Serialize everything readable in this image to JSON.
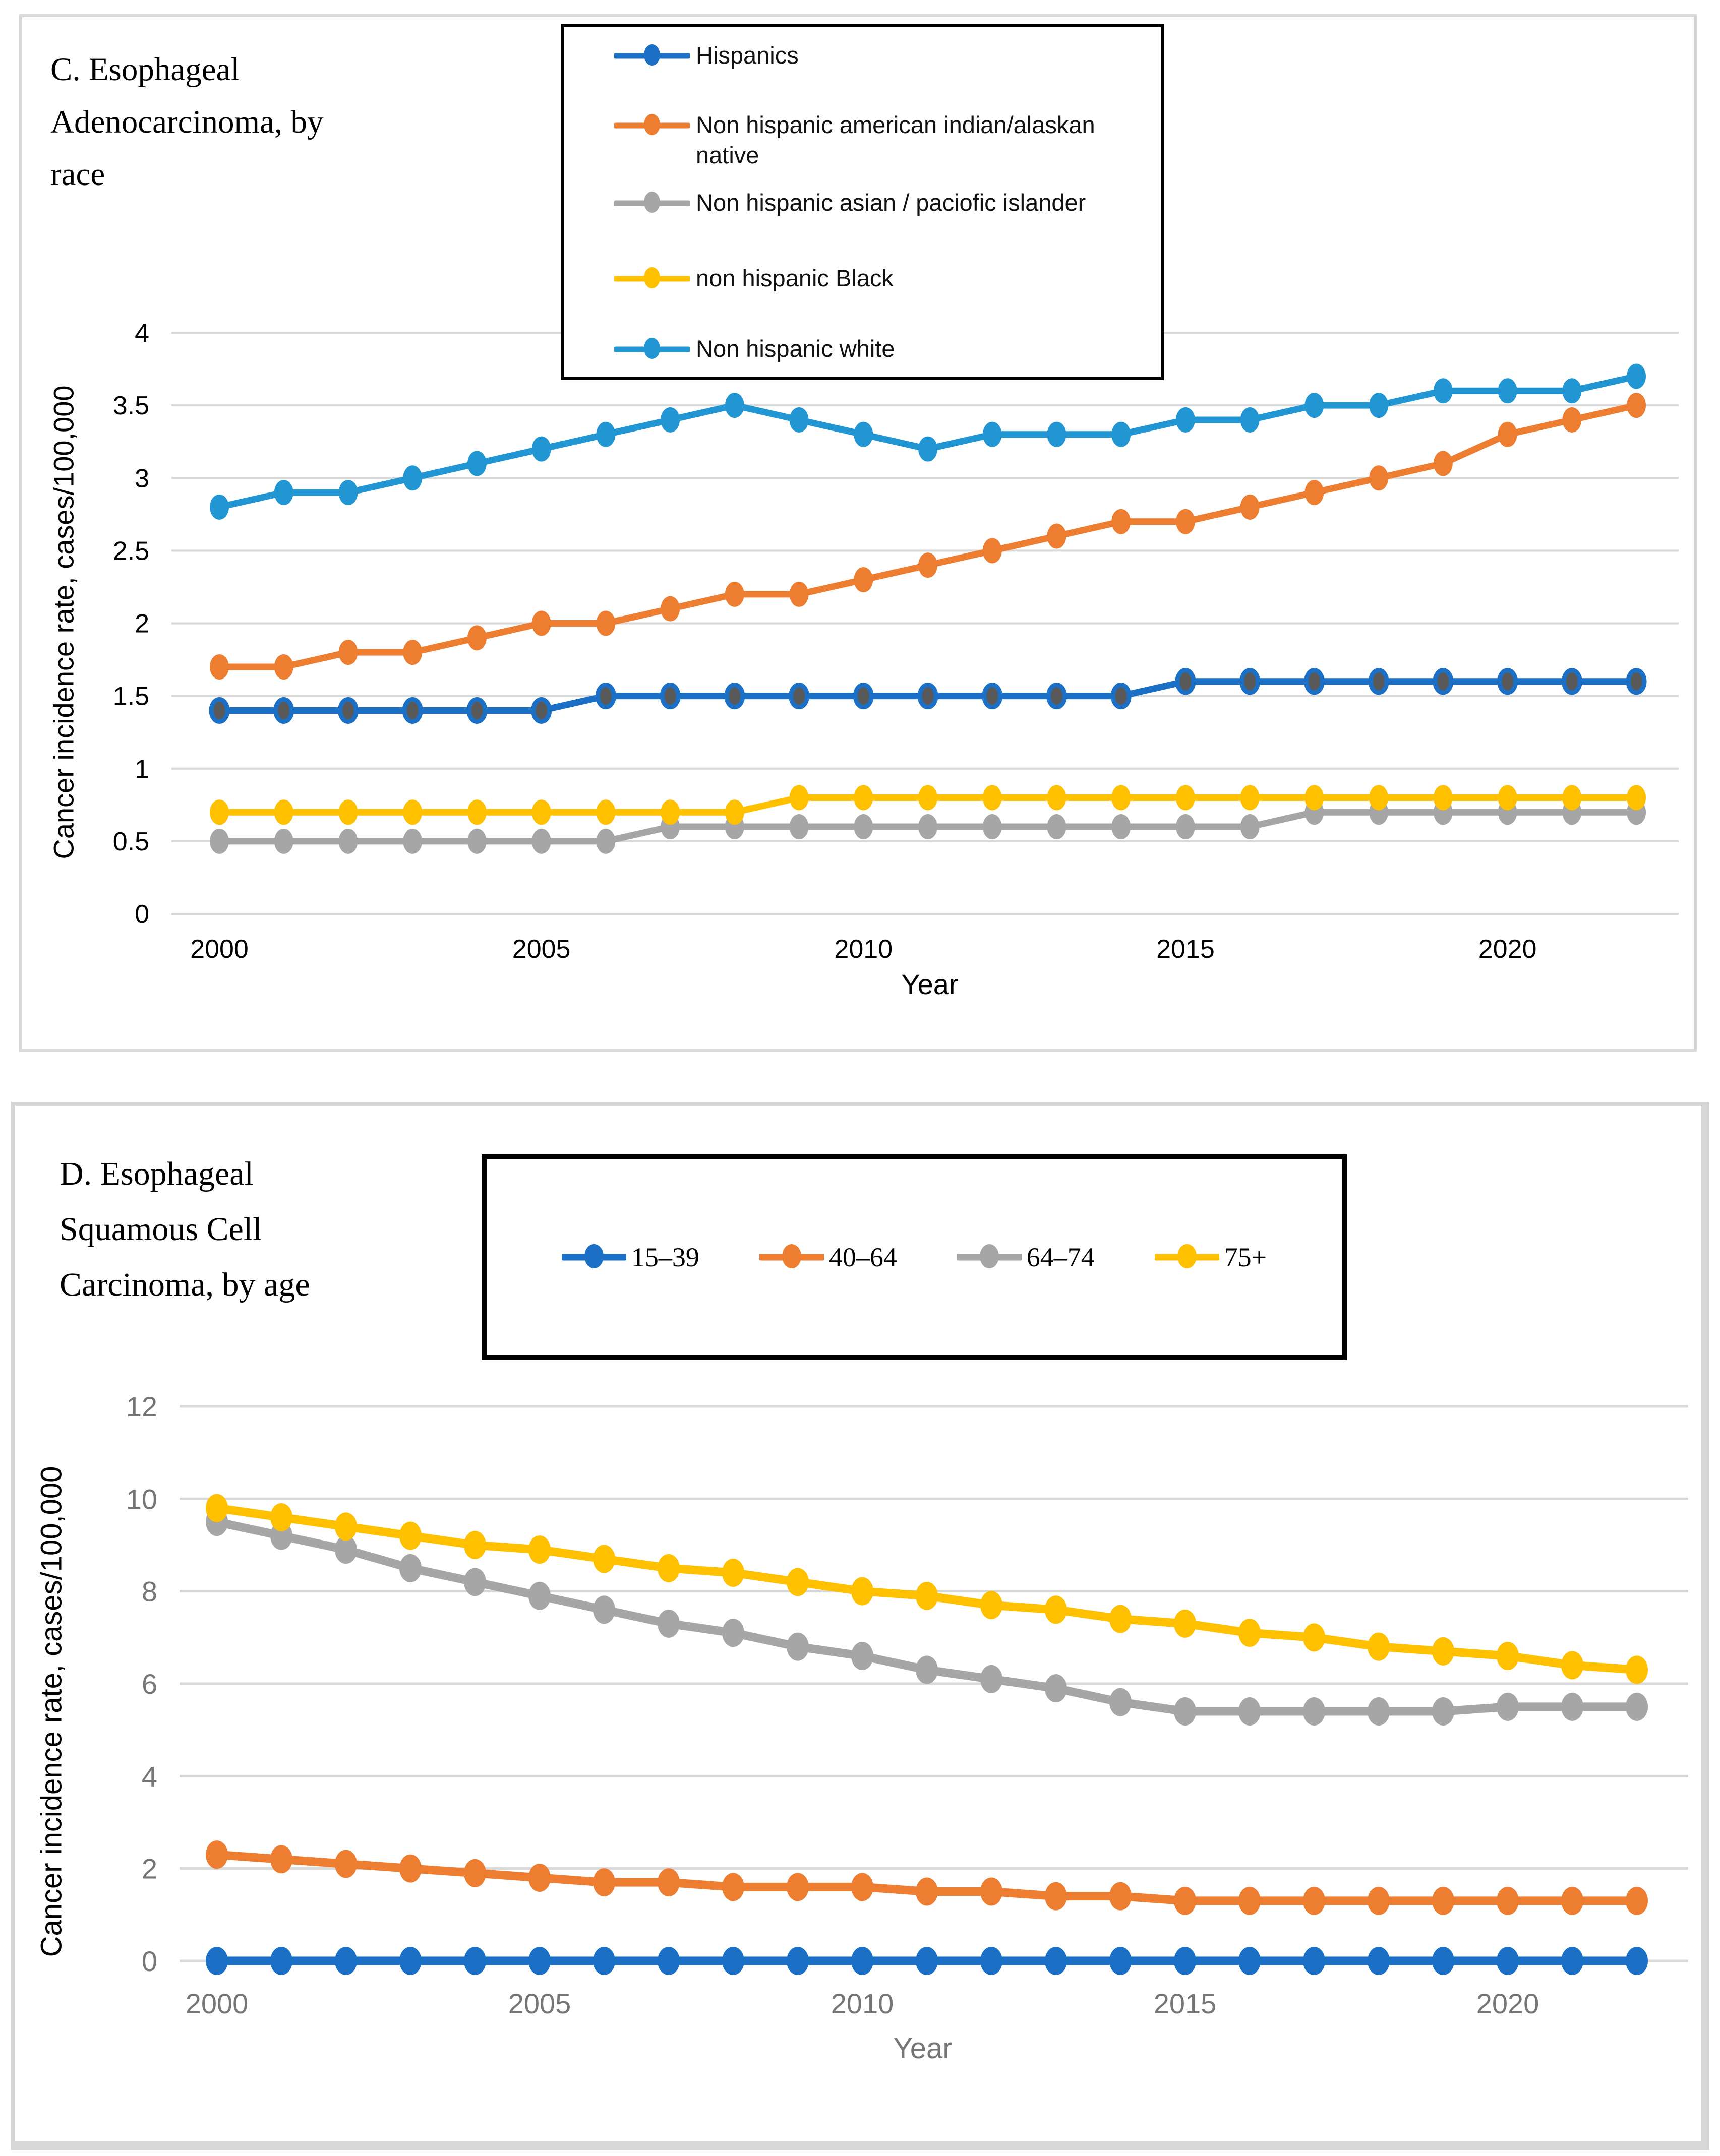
{
  "panel_c": {
    "title": "C. Esophageal Adenocarcinoma, by race",
    "title_lines": [
      "C. Esophageal",
      "Adenocarcinoma, by",
      "race"
    ],
    "y_axis_title": "Cancer incidence rate, cases/100,000",
    "x_axis_title": "Year"
  },
  "panel_d": {
    "title": "D. Esophageal Squamous Cell Carcinoma, by age",
    "title_lines": [
      "D. Esophageal",
      "Squamous Cell",
      "Carcinoma, by age"
    ],
    "y_axis_title": "Cancer incidence rate, cases/100,000",
    "x_axis_title": "Year"
  },
  "colors": {
    "blue": "#1B6FC4",
    "light_blue": "#2196D3",
    "orange": "#ED7D31",
    "gray": "#A6A6A6",
    "yellow": "#FFC000",
    "marker_inner_gray": "#595959",
    "gridline": "#D9D9D9",
    "axis_text_dark": "#000000",
    "axis_text_gray": "#767676"
  },
  "chart_data": [
    {
      "type": "line",
      "title": "C. Esophageal Adenocarcinoma, by race",
      "xlabel": "Year",
      "ylabel": "Cancer incidence rate, cases/100,000",
      "x": [
        2000,
        2001,
        2002,
        2003,
        2004,
        2005,
        2006,
        2007,
        2008,
        2009,
        2010,
        2011,
        2012,
        2013,
        2014,
        2015,
        2016,
        2017,
        2018,
        2019,
        2020,
        2021,
        2022
      ],
      "xticks": [
        2000,
        2005,
        2010,
        2015,
        2020
      ],
      "yticks": [
        0,
        0.5,
        1,
        1.5,
        2,
        2.5,
        3,
        3.5,
        4
      ],
      "ylim": [
        0,
        4
      ],
      "grid": true,
      "legend_position": "top-center-box",
      "series": [
        {
          "name": "Hispanics",
          "color": "#1B6FC4",
          "marker_fill": "#595959",
          "values": [
            1.4,
            1.4,
            1.4,
            1.4,
            1.4,
            1.4,
            1.5,
            1.5,
            1.5,
            1.5,
            1.5,
            1.5,
            1.5,
            1.5,
            1.5,
            1.6,
            1.6,
            1.6,
            1.6,
            1.6,
            1.6,
            1.6,
            1.6
          ]
        },
        {
          "name": "Non hispanic american indian/alaskan native",
          "color": "#ED7D31",
          "values": [
            1.7,
            1.7,
            1.8,
            1.8,
            1.9,
            2.0,
            2.0,
            2.1,
            2.2,
            2.2,
            2.3,
            2.4,
            2.5,
            2.6,
            2.7,
            2.7,
            2.8,
            2.9,
            3.0,
            3.1,
            3.3,
            3.4,
            3.5
          ]
        },
        {
          "name": "Non hispanic asian / paciofic islander",
          "color": "#A6A6A6",
          "values": [
            0.5,
            0.5,
            0.5,
            0.5,
            0.5,
            0.5,
            0.5,
            0.6,
            0.6,
            0.6,
            0.6,
            0.6,
            0.6,
            0.6,
            0.6,
            0.6,
            0.6,
            0.7,
            0.7,
            0.7,
            0.7,
            0.7,
            0.7
          ]
        },
        {
          "name": "non hispanic Black",
          "color": "#FFC000",
          "values": [
            0.7,
            0.7,
            0.7,
            0.7,
            0.7,
            0.7,
            0.7,
            0.7,
            0.7,
            0.8,
            0.8,
            0.8,
            0.8,
            0.8,
            0.8,
            0.8,
            0.8,
            0.8,
            0.8,
            0.8,
            0.8,
            0.8,
            0.8
          ]
        },
        {
          "name": "Non hispanic white",
          "color": "#2196D3",
          "values": [
            2.8,
            2.9,
            2.9,
            3.0,
            3.1,
            3.2,
            3.3,
            3.4,
            3.5,
            3.4,
            3.3,
            3.2,
            3.3,
            3.3,
            3.3,
            3.4,
            3.4,
            3.5,
            3.5,
            3.6,
            3.6,
            3.6,
            3.7
          ]
        }
      ]
    },
    {
      "type": "line",
      "title": "D. Esophageal Squamous Cell Carcinoma, by age",
      "xlabel": "Year",
      "ylabel": "Cancer incidence rate, cases/100,000",
      "x": [
        2000,
        2001,
        2002,
        2003,
        2004,
        2005,
        2006,
        2007,
        2008,
        2009,
        2010,
        2011,
        2012,
        2013,
        2014,
        2015,
        2016,
        2017,
        2018,
        2019,
        2020,
        2021,
        2022
      ],
      "xticks": [
        2000,
        2005,
        2010,
        2015,
        2020
      ],
      "yticks": [
        0,
        2,
        4,
        6,
        8,
        10,
        12
      ],
      "ylim": [
        0,
        12
      ],
      "grid": true,
      "legend_position": "top-center-box",
      "series": [
        {
          "name": "15–39",
          "color": "#1B6FC4",
          "values": [
            0,
            0,
            0,
            0,
            0,
            0,
            0,
            0,
            0,
            0,
            0,
            0,
            0,
            0,
            0,
            0,
            0,
            0,
            0,
            0,
            0,
            0,
            0
          ]
        },
        {
          "name": "40–64",
          "color": "#ED7D31",
          "values": [
            2.3,
            2.2,
            2.1,
            2.0,
            1.9,
            1.8,
            1.7,
            1.7,
            1.6,
            1.6,
            1.6,
            1.5,
            1.5,
            1.4,
            1.4,
            1.3,
            1.3,
            1.3,
            1.3,
            1.3,
            1.3,
            1.3,
            1.3
          ]
        },
        {
          "name": "64–74",
          "color": "#A6A6A6",
          "values": [
            9.5,
            9.2,
            8.9,
            8.5,
            8.2,
            7.9,
            7.6,
            7.3,
            7.1,
            6.8,
            6.6,
            6.3,
            6.1,
            5.9,
            5.6,
            5.4,
            5.4,
            5.4,
            5.4,
            5.4,
            5.5,
            5.5,
            5.5
          ]
        },
        {
          "name": "75+",
          "color": "#FFC000",
          "values": [
            9.8,
            9.6,
            9.4,
            9.2,
            9.0,
            8.9,
            8.7,
            8.5,
            8.4,
            8.2,
            8.0,
            7.9,
            7.7,
            7.6,
            7.4,
            7.3,
            7.1,
            7.0,
            6.8,
            6.7,
            6.6,
            6.4,
            6.3
          ]
        }
      ]
    }
  ]
}
